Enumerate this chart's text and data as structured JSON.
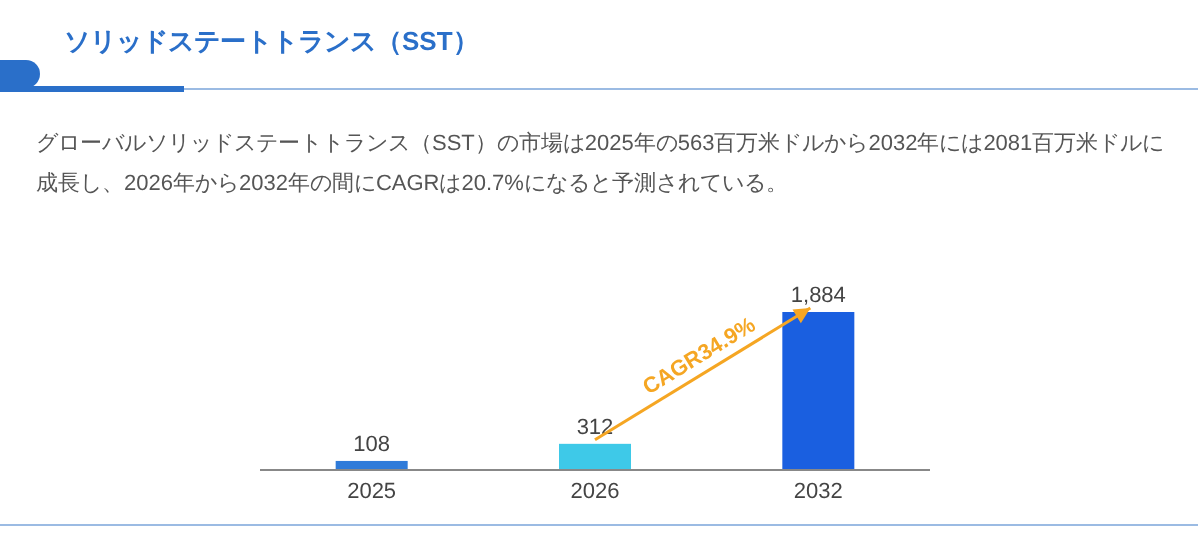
{
  "chart_data": {
    "type": "bar",
    "title": "ソリッドステートトランス（SST）",
    "subtitle": "グローバルソリッドステートトランス（SST）の市場は2025年の563百万米ドルから2032年には2081百万米ドルに成長し、2026年から2032年の間にCAGRは20.7%になると予測されている。",
    "categories": [
      "2025",
      "2026",
      "2032"
    ],
    "values": [
      108,
      312,
      1884
    ],
    "colors": [
      "#2f7bd9",
      "#3ec9e8",
      "#1a5fe0"
    ],
    "value_labels": [
      "108",
      "312",
      "1,884"
    ],
    "annotations": [
      "CAGR34.9%"
    ]
  }
}
